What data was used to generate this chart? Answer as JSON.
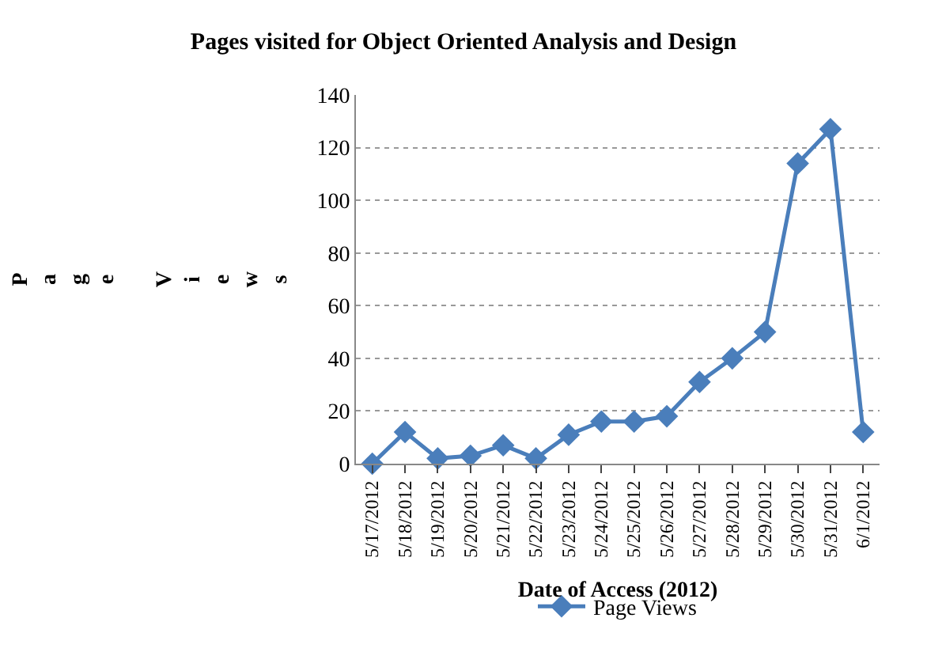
{
  "chart_data": {
    "type": "line",
    "title": "Pages visited for Object Oriented Analysis and Design",
    "xlabel": "Date of Access (2012)",
    "ylabel": "Page Views",
    "categories": [
      "5/17/2012",
      "5/18/2012",
      "5/19/2012",
      "5/20/2012",
      "5/21/2012",
      "5/22/2012",
      "5/23/2012",
      "5/24/2012",
      "5/25/2012",
      "5/26/2012",
      "5/27/2012",
      "5/28/2012",
      "5/29/2012",
      "5/30/2012",
      "5/31/2012",
      "6/1/2012"
    ],
    "series": [
      {
        "name": "Page Views",
        "color": "#4a7ebb",
        "values": [
          0,
          12,
          2,
          3,
          7,
          2,
          11,
          16,
          16,
          18,
          31,
          40,
          50,
          114,
          127,
          12
        ]
      }
    ],
    "ylim": [
      0,
      140
    ],
    "yticks": [
      0,
      20,
      40,
      60,
      80,
      100,
      120,
      140
    ],
    "grid": "y",
    "legend": "bottom",
    "marker": "diamond",
    "line_style": "solid"
  }
}
